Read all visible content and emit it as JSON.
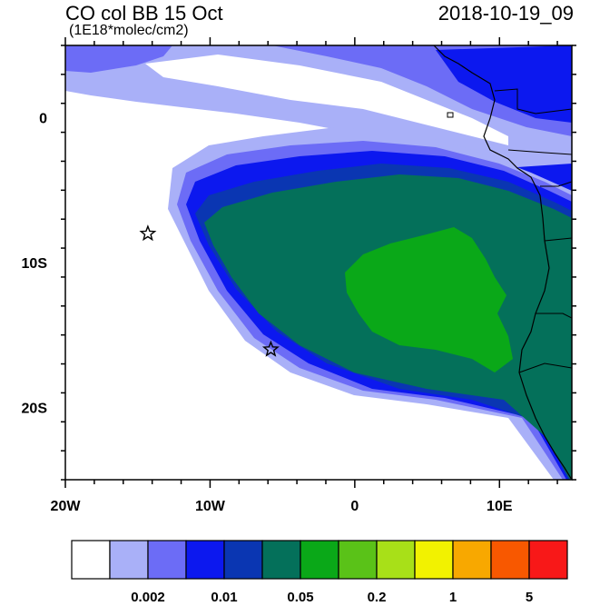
{
  "header": {
    "title": "CO col BB 15 Oct",
    "units": "(1E18*molec/cm2)",
    "datetime": "2018-10-19_09"
  },
  "map": {
    "lon_range": [
      -20,
      15
    ],
    "lat_range": [
      -25,
      5
    ],
    "x_ticks": [
      {
        "lon": -20,
        "label": "20W"
      },
      {
        "lon": -10,
        "label": "10W"
      },
      {
        "lon": 0,
        "label": "0"
      },
      {
        "lon": 10,
        "label": "10E"
      }
    ],
    "y_ticks": [
      {
        "lat": 0,
        "label": "0"
      },
      {
        "lat": -10,
        "label": "10S"
      },
      {
        "lat": -20,
        "label": "20S"
      }
    ],
    "markers": [
      {
        "name": "star-marker",
        "lon": -14.3,
        "lat": -8.0
      },
      {
        "name": "star-marker",
        "lon": -5.8,
        "lat": -16.0
      }
    ],
    "contour_colors": [
      "#ffffff",
      "#a9b0f8",
      "#6c6cf6",
      "#0c18ef",
      "#0a36b2",
      "#04705a",
      "#0aa818",
      "#5ac218",
      "#a8e018",
      "#f2f200",
      "#f8a800",
      "#f85800",
      "#f81818"
    ]
  },
  "colorbar": {
    "colors": [
      "#ffffff",
      "#a9b0f8",
      "#6c6cf6",
      "#0c18ef",
      "#0a36b2",
      "#04705a",
      "#0aa818",
      "#5ac218",
      "#a8e018",
      "#f2f200",
      "#f8a800",
      "#f85800",
      "#f81818"
    ],
    "labels": [
      {
        "after_box": 2,
        "text": "0.002"
      },
      {
        "after_box": 4,
        "text": "0.01"
      },
      {
        "after_box": 6,
        "text": "0.05"
      },
      {
        "after_box": 8,
        "text": "0.2"
      },
      {
        "after_box": 10,
        "text": "1"
      },
      {
        "after_box": 12,
        "text": "5"
      }
    ]
  }
}
